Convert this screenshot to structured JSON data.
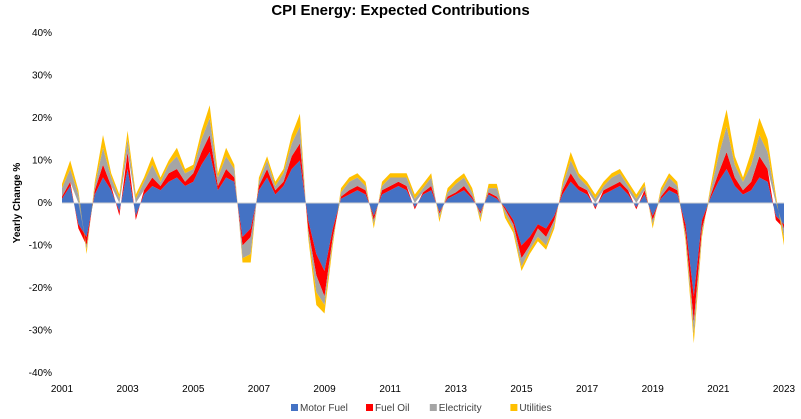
{
  "chart_data": {
    "type": "area",
    "title": "CPI Energy: Expected Contributions",
    "ylabel": "Yearly Change %",
    "xlabel": "",
    "ylim": [
      -40,
      40
    ],
    "xlim": [
      2001,
      2023
    ],
    "yticks": [
      "40%",
      "30%",
      "20%",
      "10%",
      "0%",
      "-10%",
      "-20%",
      "-30%",
      "-40%"
    ],
    "xticks": [
      "2001",
      "2003",
      "2005",
      "2007",
      "2009",
      "2011",
      "2013",
      "2015",
      "2017",
      "2019",
      "2021",
      "2023"
    ],
    "legend_position": "bottom",
    "grid": false,
    "stacked": true,
    "x": [
      2001.0,
      2001.25,
      2001.5,
      2001.75,
      2002.0,
      2002.25,
      2002.5,
      2002.75,
      2003.0,
      2003.25,
      2003.5,
      2003.75,
      2004.0,
      2004.25,
      2004.5,
      2004.75,
      2005.0,
      2005.25,
      2005.5,
      2005.75,
      2006.0,
      2006.25,
      2006.5,
      2006.75,
      2007.0,
      2007.25,
      2007.5,
      2007.75,
      2008.0,
      2008.25,
      2008.5,
      2008.75,
      2009.0,
      2009.25,
      2009.5,
      2009.75,
      2010.0,
      2010.25,
      2010.5,
      2010.75,
      2011.0,
      2011.25,
      2011.5,
      2011.75,
      2012.0,
      2012.25,
      2012.5,
      2012.75,
      2013.0,
      2013.25,
      2013.5,
      2013.75,
      2014.0,
      2014.25,
      2014.5,
      2014.75,
      2015.0,
      2015.25,
      2015.5,
      2015.75,
      2016.0,
      2016.25,
      2016.5,
      2016.75,
      2017.0,
      2017.25,
      2017.5,
      2017.75,
      2018.0,
      2018.25,
      2018.5,
      2018.75,
      2019.0,
      2019.25,
      2019.5,
      2019.75,
      2020.0,
      2020.25,
      2020.5,
      2020.75,
      2021.0,
      2021.25,
      2021.5,
      2021.75,
      2022.0,
      2022.25,
      2022.5,
      2022.75,
      2023.0
    ],
    "series": [
      {
        "name": "Motor Fuel",
        "color": "#4472C4",
        "values": [
          1,
          4,
          -5,
          -8,
          2,
          6,
          3,
          -2,
          8,
          -3,
          2,
          4,
          3,
          5,
          6,
          4,
          5,
          9,
          12,
          3,
          6,
          5,
          -8,
          -6,
          3,
          6,
          2,
          4,
          8,
          10,
          -4,
          -12,
          -16,
          -6,
          1,
          2,
          3,
          2,
          -3,
          2,
          3,
          4,
          3,
          -1,
          2,
          3,
          -2,
          1,
          2,
          3,
          1,
          -2,
          2,
          1,
          -1,
          -4,
          -10,
          -8,
          -5,
          -6,
          -3,
          2,
          5,
          3,
          2,
          -1,
          2,
          3,
          4,
          2,
          -1,
          2,
          -3,
          1,
          3,
          2,
          -5,
          -22,
          -4,
          1,
          5,
          8,
          4,
          2,
          3,
          6,
          5,
          -3,
          -5
        ]
      },
      {
        "name": "Fuel Oil",
        "color": "#FF0000",
        "values": [
          0.5,
          1,
          -1,
          -2,
          1,
          3,
          1,
          -1,
          4,
          -1,
          1,
          2,
          1,
          2,
          2,
          1,
          2,
          3,
          4,
          1,
          2,
          1,
          -2,
          -2,
          1,
          2,
          1,
          1,
          3,
          4,
          -2,
          -5,
          -6,
          -2,
          0.5,
          1,
          1,
          1,
          -1,
          1,
          1,
          1,
          1,
          -0.5,
          0.5,
          1,
          -0.5,
          0.5,
          0.5,
          1,
          0.5,
          -0.5,
          0.5,
          0.5,
          -0.5,
          -1,
          -3,
          -2,
          -1,
          -2,
          -1,
          1,
          2,
          1,
          1,
          -0.5,
          1,
          1,
          1,
          1,
          -0.5,
          1,
          -1,
          0.5,
          1,
          1,
          -2,
          -6,
          -2,
          0.5,
          2,
          4,
          2,
          1,
          2,
          5,
          3,
          -1,
          -1
        ]
      },
      {
        "name": "Electricity",
        "color": "#A5A5A5",
        "values": [
          2,
          3,
          2,
          -1,
          1,
          4,
          2,
          1,
          3,
          1,
          2,
          3,
          1,
          2,
          3,
          2,
          1,
          3,
          4,
          2,
          3,
          2,
          -3,
          -4,
          1,
          2,
          1,
          2,
          3,
          4,
          -1,
          -4,
          -2,
          -1,
          1,
          2,
          2,
          1,
          -1,
          1,
          2,
          1,
          2,
          1,
          1,
          2,
          -1,
          1,
          2,
          2,
          1,
          -1,
          1,
          2,
          -1,
          -1,
          -2,
          -1,
          -2,
          -2,
          -1,
          1,
          3,
          2,
          1,
          1,
          1,
          2,
          2,
          1,
          1,
          1,
          -1,
          1,
          2,
          1,
          -1,
          -3,
          -1,
          1,
          4,
          6,
          3,
          2,
          4,
          5,
          4,
          1,
          -2
        ]
      },
      {
        "name": "Utilities",
        "color": "#FFC000",
        "values": [
          1,
          2,
          1,
          -1,
          1,
          3,
          1,
          1,
          2,
          1,
          1,
          2,
          1,
          1,
          2,
          1,
          1,
          2,
          3,
          1,
          2,
          1,
          -1,
          -2,
          1,
          1,
          1,
          1,
          2,
          3,
          -1,
          -3,
          -2,
          -1,
          1,
          1,
          1,
          1,
          -1,
          1,
          1,
          1,
          1,
          1,
          1,
          1,
          -1,
          1,
          1,
          1,
          1,
          -1,
          1,
          1,
          -1,
          -1,
          -1,
          -1,
          -1,
          -1,
          -1,
          1,
          2,
          1,
          1,
          1,
          1,
          1,
          1,
          1,
          1,
          1,
          -1,
          1,
          1,
          1,
          -1,
          -2,
          -1,
          1,
          3,
          4,
          2,
          1,
          3,
          4,
          3,
          1,
          -2
        ]
      }
    ]
  }
}
